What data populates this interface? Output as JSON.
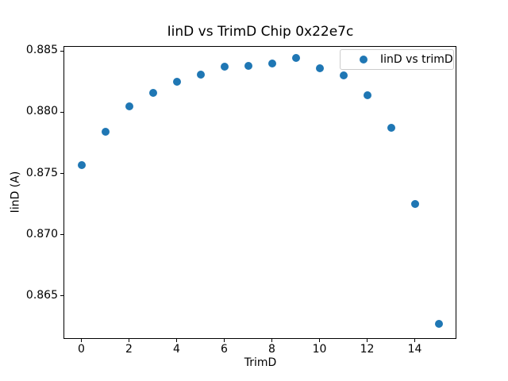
{
  "figure": {
    "background": "#ffffff",
    "spine_color": "#000000",
    "text_color": "#000000"
  },
  "chart_data": {
    "type": "scatter",
    "title": "IinD vs TrimD Chip 0x22e7c",
    "xlabel": "TrimD",
    "ylabel": "IinD (A)",
    "legend": {
      "label": "IinD vs trimD",
      "position": "upper right",
      "border_color": "#cccccc"
    },
    "marker_color": "#1f77b4",
    "grid": false,
    "x": [
      0,
      1,
      2,
      3,
      4,
      5,
      6,
      7,
      8,
      9,
      10,
      11,
      12,
      13,
      14,
      15
    ],
    "y": [
      0.8757,
      0.8784,
      0.8805,
      0.8816,
      0.8825,
      0.8831,
      0.8837,
      0.8838,
      0.884,
      0.8844,
      0.8836,
      0.883,
      0.8814,
      0.8787,
      0.8725,
      0.8627
    ],
    "xlim": [
      -0.75,
      15.75
    ],
    "ylim": [
      0.8615,
      0.8854
    ],
    "x_ticks": [
      0,
      2,
      4,
      6,
      8,
      10,
      12,
      14
    ],
    "x_tick_labels": [
      "0",
      "2",
      "4",
      "6",
      "8",
      "10",
      "12",
      "14"
    ],
    "y_ticks": [
      0.885,
      0.88,
      0.875,
      0.87,
      0.865
    ],
    "y_tick_labels": [
      "0.885",
      "0.880",
      "0.875",
      "0.870",
      "0.865"
    ]
  }
}
